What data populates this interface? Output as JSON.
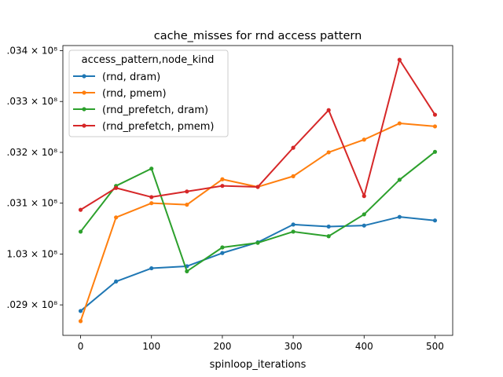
{
  "chart_data": {
    "type": "line",
    "title": "cache_misses for rnd access pattern",
    "xlabel": "spinloop_iterations",
    "ylabel": "",
    "x": [
      0,
      50,
      100,
      150,
      200,
      250,
      300,
      350,
      400,
      450,
      500
    ],
    "xlim": [
      -25,
      525
    ],
    "ylim": [
      102840000,
      103410000
    ],
    "xticks": [
      0,
      100,
      200,
      300,
      400,
      500
    ],
    "yticks": [
      102900000,
      103000000,
      103100000,
      103200000,
      103300000,
      103400000
    ],
    "ytick_labels": [
      ".029 × 10⁸",
      "1.03 × 10⁸",
      ".031 × 10⁸",
      ".032 × 10⁸",
      ".033 × 10⁸",
      ".034 × 10⁸"
    ],
    "grid": false,
    "legend_title": "access_pattern,node_kind",
    "legend_position": "upper-left",
    "series": [
      {
        "name": "(rnd, dram)",
        "color": "#1f77b4",
        "values": [
          102888000,
          102946000,
          102972000,
          102976000,
          103002000,
          103023000,
          103058000,
          103054000,
          103056000,
          103073000,
          103066000
        ]
      },
      {
        "name": "(rnd, pmem)",
        "color": "#ff7f0e",
        "values": [
          102868000,
          103072000,
          103100000,
          103097000,
          103147000,
          103132000,
          103153000,
          103200000,
          103225000,
          103257000,
          103251000
        ]
      },
      {
        "name": "(rnd_prefetch, dram)",
        "color": "#2ca02c",
        "values": [
          103044000,
          103134000,
          103168000,
          102966000,
          103013000,
          103022000,
          103044000,
          103035000,
          103078000,
          103146000,
          103201000
        ]
      },
      {
        "name": "(rnd_prefetch, pmem)",
        "color": "#d62728",
        "values": [
          103087000,
          103130000,
          103112000,
          103123000,
          103134000,
          103132000,
          103209000,
          103283000,
          103114000,
          103382000,
          103274000
        ]
      }
    ]
  }
}
